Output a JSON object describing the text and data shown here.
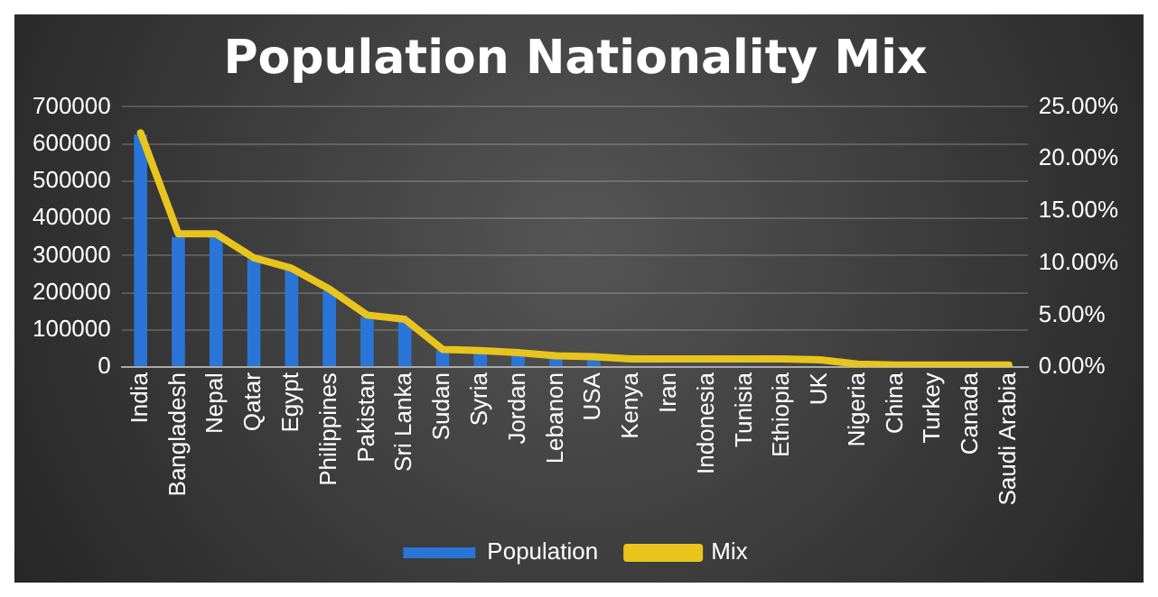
{
  "chart_data": {
    "type": "bar",
    "title": "Population Nationality Mix",
    "categories": [
      "India",
      "Bangladesh",
      "Nepal",
      "Qatar",
      "Egypt",
      "Philippines",
      "Pakistan",
      "Sri Lanka",
      "Sudan",
      "Syria",
      "Jordan",
      "Lebanon",
      "USA",
      "Kenya",
      "Iran",
      "Indonesia",
      "Tunisia",
      "Ethiopia",
      "UK",
      "Nigeria",
      "China",
      "Turkey",
      "Canada",
      "Saudi Arabia"
    ],
    "series": [
      {
        "name": "Population",
        "color": "#2a75d8",
        "values": [
          625000,
          350000,
          350000,
          290000,
          260000,
          205000,
          135000,
          125000,
          45000,
          42000,
          37000,
          30000,
          27000,
          null,
          null,
          null,
          null,
          null,
          null,
          null,
          null,
          null,
          null,
          null
        ]
      },
      {
        "name": "Mix",
        "type": "line",
        "axis": "y2",
        "color": "#e8c41c",
        "values": [
          22.5,
          12.8,
          12.8,
          10.5,
          9.5,
          7.5,
          5.0,
          4.6,
          1.7,
          1.6,
          1.4,
          1.1,
          1.0,
          0.8,
          0.8,
          0.8,
          0.8,
          0.8,
          0.7,
          0.3,
          0.2,
          0.2,
          0.2,
          0.2
        ]
      }
    ],
    "ylim": [
      0,
      700000
    ],
    "yticks": [
      0,
      100000,
      200000,
      300000,
      400000,
      500000,
      600000,
      700000
    ],
    "y2lim": [
      0,
      25
    ],
    "y2ticks": [
      {
        "value": 0,
        "label": "0.00%"
      },
      {
        "value": 5,
        "label": "5.00%"
      },
      {
        "value": 10,
        "label": "10.00%"
      },
      {
        "value": 15,
        "label": "15.00%"
      },
      {
        "value": 20,
        "label": "20.00%"
      },
      {
        "value": 25,
        "label": "25.00%"
      }
    ],
    "grid": "y",
    "legend": "bottom",
    "marker": "none"
  }
}
